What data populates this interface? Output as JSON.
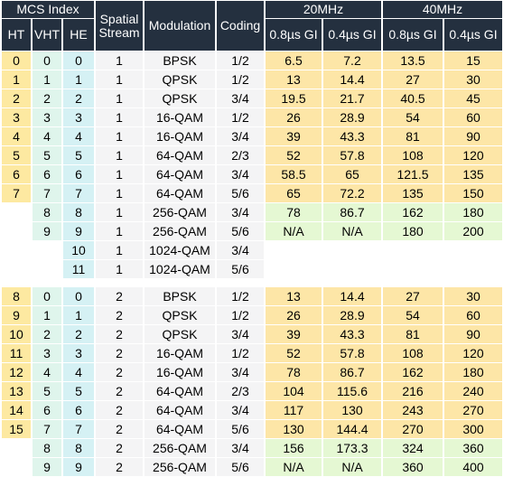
{
  "headers": {
    "mcs_index": "MCS Index",
    "ht": "HT",
    "vht": "VHT",
    "he": "HE",
    "spatial_stream": "Spatial Stream",
    "modulation": "Modulation",
    "coding": "Coding",
    "bw20": "20MHz",
    "bw40": "40MHz",
    "gi08": "0.8µs GI",
    "gi04": "0.4µs GI"
  },
  "groups": [
    {
      "rows": [
        {
          "ht": "0",
          "vht": "0",
          "he": "0",
          "ss": "1",
          "mod": "BPSK",
          "coding": "1/2",
          "r20_08": "6.5",
          "r20_04": "7.2",
          "r40_08": "13.5",
          "r40_04": "15"
        },
        {
          "ht": "1",
          "vht": "1",
          "he": "1",
          "ss": "1",
          "mod": "QPSK",
          "coding": "1/2",
          "r20_08": "13",
          "r20_04": "14.4",
          "r40_08": "27",
          "r40_04": "30"
        },
        {
          "ht": "2",
          "vht": "2",
          "he": "2",
          "ss": "1",
          "mod": "QPSK",
          "coding": "3/4",
          "r20_08": "19.5",
          "r20_04": "21.7",
          "r40_08": "40.5",
          "r40_04": "45"
        },
        {
          "ht": "3",
          "vht": "3",
          "he": "3",
          "ss": "1",
          "mod": "16-QAM",
          "coding": "1/2",
          "r20_08": "26",
          "r20_04": "28.9",
          "r40_08": "54",
          "r40_04": "60"
        },
        {
          "ht": "4",
          "vht": "4",
          "he": "4",
          "ss": "1",
          "mod": "16-QAM",
          "coding": "3/4",
          "r20_08": "39",
          "r20_04": "43.3",
          "r40_08": "81",
          "r40_04": "90"
        },
        {
          "ht": "5",
          "vht": "5",
          "he": "5",
          "ss": "1",
          "mod": "64-QAM",
          "coding": "2/3",
          "r20_08": "52",
          "r20_04": "57.8",
          "r40_08": "108",
          "r40_04": "120"
        },
        {
          "ht": "6",
          "vht": "6",
          "he": "6",
          "ss": "1",
          "mod": "64-QAM",
          "coding": "3/4",
          "r20_08": "58.5",
          "r20_04": "65",
          "r40_08": "121.5",
          "r40_04": "135"
        },
        {
          "ht": "7",
          "vht": "7",
          "he": "7",
          "ss": "1",
          "mod": "64-QAM",
          "coding": "5/6",
          "r20_08": "65",
          "r20_04": "72.2",
          "r40_08": "135",
          "r40_04": "150"
        },
        {
          "ht": "",
          "vht": "8",
          "he": "8",
          "ss": "1",
          "mod": "256-QAM",
          "coding": "3/4",
          "r20_08": "78",
          "r20_04": "86.7",
          "r40_08": "162",
          "r40_04": "180"
        },
        {
          "ht": "",
          "vht": "9",
          "he": "9",
          "ss": "1",
          "mod": "256-QAM",
          "coding": "5/6",
          "r20_08": "N/A",
          "r20_04": "N/A",
          "r40_08": "180",
          "r40_04": "200"
        },
        {
          "ht": "",
          "vht": "",
          "he": "10",
          "ss": "1",
          "mod": "1024-QAM",
          "coding": "3/4",
          "r20_08": "",
          "r20_04": "",
          "r40_08": "",
          "r40_04": ""
        },
        {
          "ht": "",
          "vht": "",
          "he": "11",
          "ss": "1",
          "mod": "1024-QAM",
          "coding": "5/6",
          "r20_08": "",
          "r20_04": "",
          "r40_08": "",
          "r40_04": ""
        }
      ]
    },
    {
      "rows": [
        {
          "ht": "8",
          "vht": "0",
          "he": "0",
          "ss": "2",
          "mod": "BPSK",
          "coding": "1/2",
          "r20_08": "13",
          "r20_04": "14.4",
          "r40_08": "27",
          "r40_04": "30"
        },
        {
          "ht": "9",
          "vht": "1",
          "he": "1",
          "ss": "2",
          "mod": "QPSK",
          "coding": "1/2",
          "r20_08": "26",
          "r20_04": "28.9",
          "r40_08": "54",
          "r40_04": "60"
        },
        {
          "ht": "10",
          "vht": "2",
          "he": "2",
          "ss": "2",
          "mod": "QPSK",
          "coding": "3/4",
          "r20_08": "39",
          "r20_04": "43.3",
          "r40_08": "81",
          "r40_04": "90"
        },
        {
          "ht": "11",
          "vht": "3",
          "he": "3",
          "ss": "2",
          "mod": "16-QAM",
          "coding": "1/2",
          "r20_08": "52",
          "r20_04": "57.8",
          "r40_08": "108",
          "r40_04": "120"
        },
        {
          "ht": "12",
          "vht": "4",
          "he": "4",
          "ss": "2",
          "mod": "16-QAM",
          "coding": "3/4",
          "r20_08": "78",
          "r20_04": "86.7",
          "r40_08": "162",
          "r40_04": "180"
        },
        {
          "ht": "13",
          "vht": "5",
          "he": "5",
          "ss": "2",
          "mod": "64-QAM",
          "coding": "2/3",
          "r20_08": "104",
          "r20_04": "115.6",
          "r40_08": "216",
          "r40_04": "240"
        },
        {
          "ht": "14",
          "vht": "6",
          "he": "6",
          "ss": "2",
          "mod": "64-QAM",
          "coding": "3/4",
          "r20_08": "117",
          "r20_04": "130",
          "r40_08": "243",
          "r40_04": "270"
        },
        {
          "ht": "15",
          "vht": "7",
          "he": "7",
          "ss": "2",
          "mod": "64-QAM",
          "coding": "5/6",
          "r20_08": "130",
          "r20_04": "144.4",
          "r40_08": "270",
          "r40_04": "300"
        },
        {
          "ht": "",
          "vht": "8",
          "he": "8",
          "ss": "2",
          "mod": "256-QAM",
          "coding": "3/4",
          "r20_08": "156",
          "r20_04": "173.3",
          "r40_08": "324",
          "r40_04": "360"
        },
        {
          "ht": "",
          "vht": "9",
          "he": "9",
          "ss": "2",
          "mod": "256-QAM",
          "coding": "5/6",
          "r20_08": "N/A",
          "r20_04": "N/A",
          "r40_08": "360",
          "r40_04": "400"
        }
      ]
    }
  ]
}
